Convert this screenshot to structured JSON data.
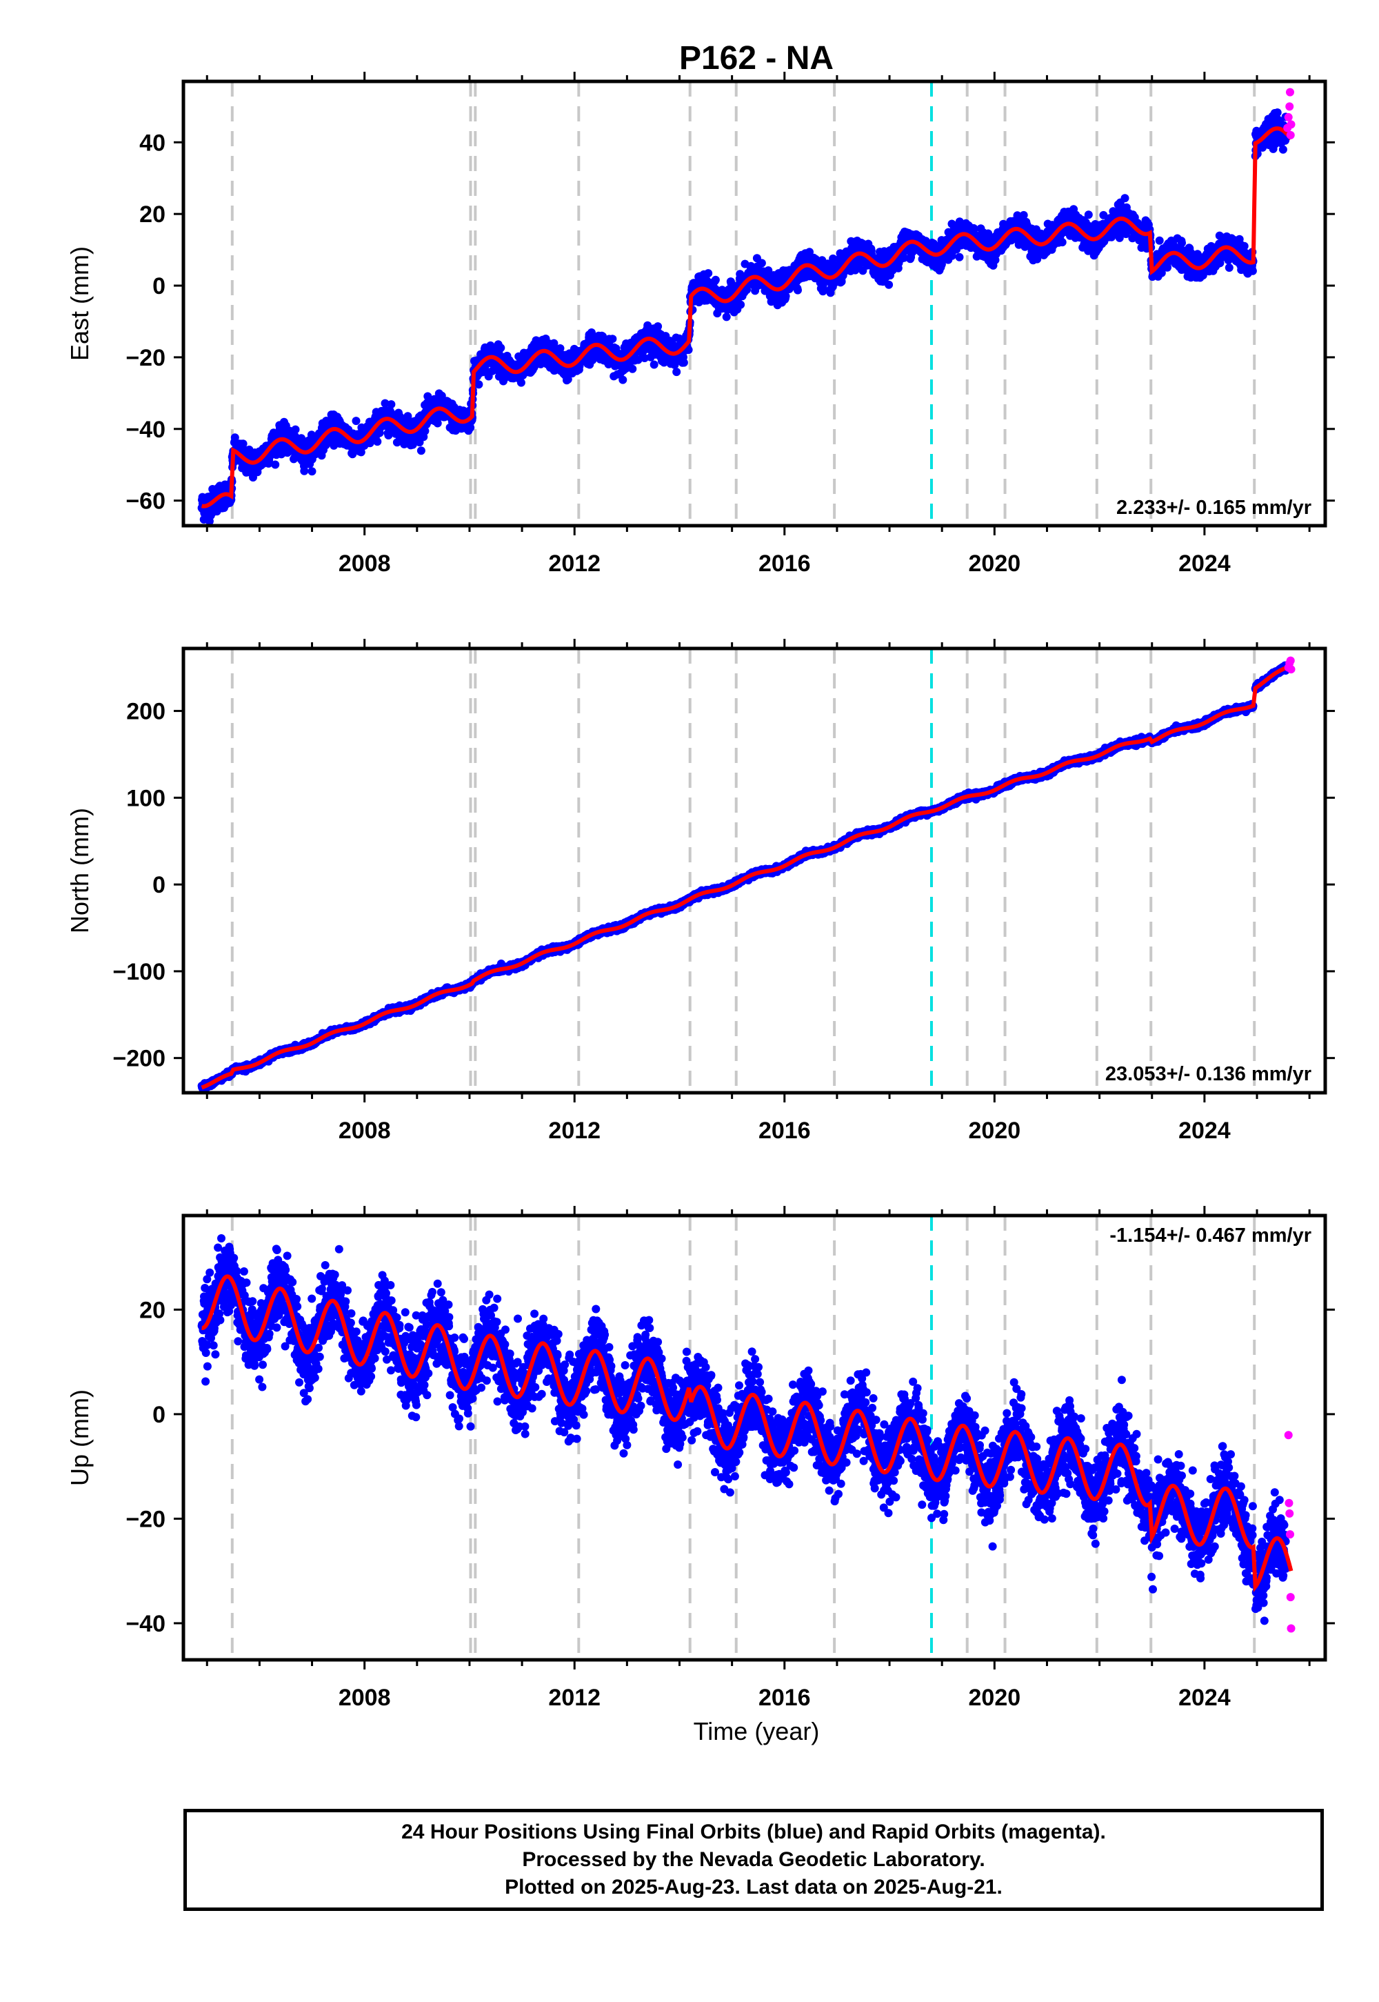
{
  "title": "P162 - NA",
  "xlabel": "Time (year)",
  "xticks": [
    2008,
    2012,
    2016,
    2020,
    2024
  ],
  "colors": {
    "final": "#0000ff",
    "rapid": "#ff00ff",
    "model": "#ff0000",
    "event": "#c8c8c8",
    "equipment": "#00e0e0"
  },
  "footer": {
    "line1": "24 Hour Positions Using Final Orbits (blue) and Rapid Orbits (magenta).",
    "line2": "Processed by the Nevada Geodetic Laboratory.",
    "line3": "Plotted on 2025-Aug-23. Last data on 2025-Aug-21."
  },
  "chart_data": [
    {
      "type": "scatter",
      "ylabel": "East (mm)",
      "rate_label": "2.233+/- 0.165 mm/yr",
      "xlim": [
        2004.55,
        2026.3
      ],
      "ylim": [
        -67,
        57
      ],
      "yticks": [
        -60,
        -40,
        -20,
        0,
        20,
        40
      ],
      "event_lines": [
        2005.48,
        2010.02,
        2010.11,
        2012.08,
        2014.2,
        2015.08,
        2016.95,
        2019.48,
        2020.2,
        2021.95,
        2022.98,
        2024.95
      ],
      "equipment_lines": [
        2018.8
      ],
      "model_knots": [
        [
          2004.9,
          -59
        ],
        [
          2005.46,
          -61
        ],
        [
          2005.5,
          -48
        ],
        [
          2010.05,
          -35
        ],
        [
          2010.08,
          -23
        ],
        [
          2014.18,
          -16
        ],
        [
          2014.22,
          -4
        ],
        [
          2018.8,
          11
        ],
        [
          2022.96,
          17
        ],
        [
          2023.0,
          6
        ],
        [
          2024.93,
          9
        ],
        [
          2024.97,
          42
        ],
        [
          2025.65,
          41
        ]
      ],
      "seasonal_amplitude": 2.5,
      "scatter_noise": 1.8,
      "rapid_points": [
        [
          2025.58,
          44
        ],
        [
          2025.6,
          47
        ],
        [
          2025.62,
          50
        ],
        [
          2025.63,
          54
        ],
        [
          2025.64,
          42
        ],
        [
          2025.65,
          45
        ]
      ]
    },
    {
      "type": "scatter",
      "ylabel": "North (mm)",
      "rate_label": "23.053+/- 0.136 mm/yr",
      "xlim": [
        2004.55,
        2026.3
      ],
      "ylim": [
        -240,
        272
      ],
      "yticks": [
        -200,
        -100,
        0,
        100,
        200
      ],
      "event_lines": [
        2005.48,
        2010.02,
        2010.11,
        2012.08,
        2014.2,
        2015.08,
        2016.95,
        2019.48,
        2020.2,
        2021.95,
        2022.98,
        2024.95
      ],
      "equipment_lines": [
        2018.8
      ],
      "model_knots": [
        [
          2004.9,
          -232
        ],
        [
          2005.46,
          -220
        ],
        [
          2005.5,
          -215
        ],
        [
          2010.05,
          -113
        ],
        [
          2010.08,
          -110
        ],
        [
          2018.8,
          86
        ],
        [
          2022.96,
          170
        ],
        [
          2023.0,
          166
        ],
        [
          2024.93,
          208
        ],
        [
          2024.97,
          228
        ],
        [
          2025.65,
          252
        ]
      ],
      "seasonal_amplitude": 2,
      "scatter_noise": 1.5,
      "rapid_points": [
        [
          2025.6,
          250
        ],
        [
          2025.62,
          255
        ],
        [
          2025.64,
          258
        ],
        [
          2025.65,
          248
        ]
      ]
    },
    {
      "type": "scatter",
      "ylabel": "Up (mm)",
      "rate_label": "-1.154+/- 0.467 mm/yr",
      "xlim": [
        2004.55,
        2026.3
      ],
      "ylim": [
        -47,
        38
      ],
      "yticks": [
        -40,
        -20,
        0,
        20
      ],
      "event_lines": [
        2005.48,
        2010.02,
        2010.11,
        2012.08,
        2014.2,
        2015.08,
        2016.95,
        2019.48,
        2020.2,
        2021.95,
        2022.98,
        2024.95
      ],
      "equipment_lines": [
        2018.8
      ],
      "model_knots": [
        [
          2004.9,
          22
        ],
        [
          2010.05,
          10
        ],
        [
          2014.18,
          4
        ],
        [
          2014.22,
          0
        ],
        [
          2018.8,
          -7
        ],
        [
          2022.96,
          -12
        ],
        [
          2023.0,
          -19
        ],
        [
          2024.93,
          -20
        ],
        [
          2024.97,
          -28
        ],
        [
          2025.65,
          -30
        ]
      ],
      "seasonal_amplitude": 5.5,
      "scatter_noise": 3.5,
      "rapid_points": [
        [
          2025.6,
          -4
        ],
        [
          2025.61,
          -17
        ],
        [
          2025.62,
          -19
        ],
        [
          2025.63,
          -23
        ],
        [
          2025.64,
          -35
        ],
        [
          2025.65,
          -41
        ]
      ]
    }
  ]
}
